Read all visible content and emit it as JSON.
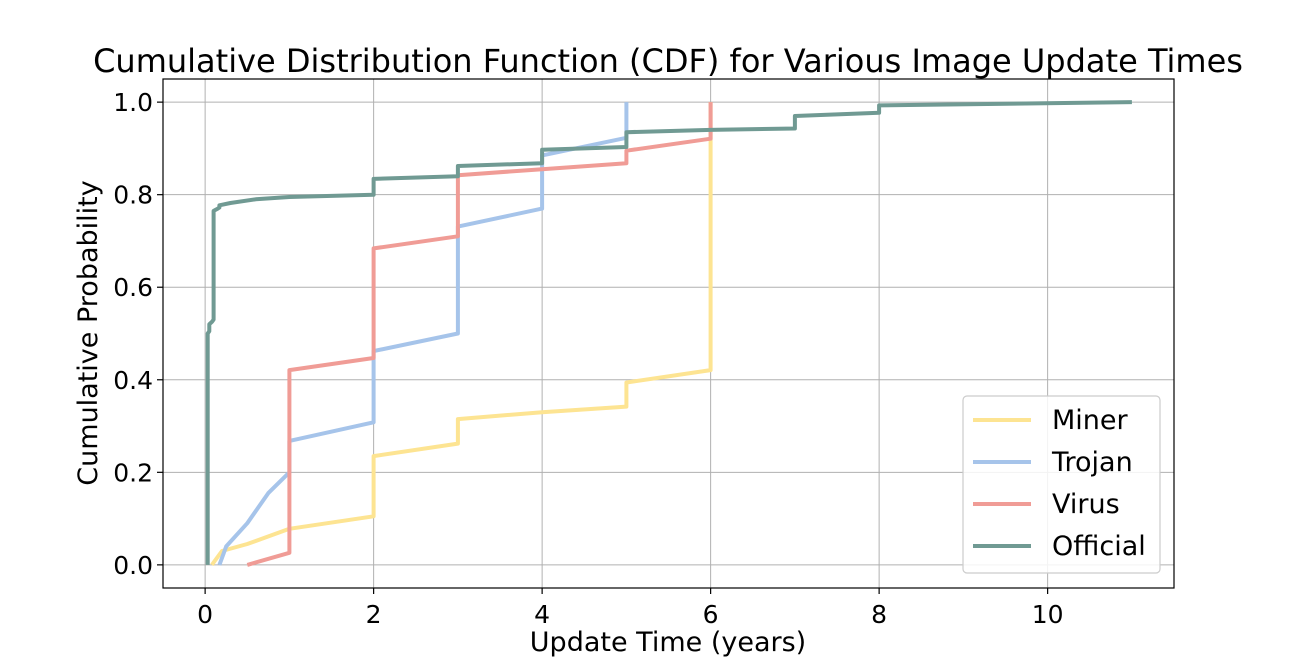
{
  "chart_data": {
    "type": "line",
    "title": "Cumulative Distribution Function (CDF) for Various Image Update Times",
    "xlabel": "Update Time (years)",
    "ylabel": "Cumulative Probability",
    "xlim": [
      -0.5,
      11.5
    ],
    "ylim": [
      -0.05,
      1.05
    ],
    "xticks": [
      0,
      2,
      4,
      6,
      8,
      10
    ],
    "yticks": [
      0.0,
      0.2,
      0.4,
      0.6,
      0.8,
      1.0
    ],
    "xtick_labels": [
      "0",
      "2",
      "4",
      "6",
      "8",
      "10"
    ],
    "ytick_labels": [
      "0.0",
      "0.2",
      "0.4",
      "0.6",
      "0.8",
      "1.0"
    ],
    "grid": true,
    "legend_position": "lower-right",
    "series": [
      {
        "name": "Miner",
        "color": "#fde492",
        "points": [
          [
            0.08,
            0.0
          ],
          [
            0.1,
            0.005
          ],
          [
            0.2,
            0.03
          ],
          [
            0.5,
            0.045
          ],
          [
            1.0,
            0.078
          ],
          [
            2.0,
            0.105
          ],
          [
            2.0,
            0.235
          ],
          [
            3.0,
            0.262
          ],
          [
            3.0,
            0.315
          ],
          [
            4.0,
            0.33
          ],
          [
            5.0,
            0.342
          ],
          [
            5.0,
            0.394
          ],
          [
            6.0,
            0.421
          ],
          [
            6.0,
            1.0
          ]
        ]
      },
      {
        "name": "Trojan",
        "color": "#a6c4ea",
        "points": [
          [
            0.17,
            0.0
          ],
          [
            0.25,
            0.04
          ],
          [
            0.5,
            0.09
          ],
          [
            0.75,
            0.155
          ],
          [
            1.0,
            0.2
          ],
          [
            1.0,
            0.268
          ],
          [
            2.0,
            0.308
          ],
          [
            2.0,
            0.462
          ],
          [
            3.0,
            0.5
          ],
          [
            3.0,
            0.731
          ],
          [
            4.0,
            0.77
          ],
          [
            4.0,
            0.885
          ],
          [
            5.0,
            0.923
          ],
          [
            5.0,
            1.0
          ]
        ]
      },
      {
        "name": "Virus",
        "color": "#f09c96",
        "points": [
          [
            0.5,
            0.0
          ],
          [
            1.0,
            0.026
          ],
          [
            1.0,
            0.421
          ],
          [
            2.0,
            0.447
          ],
          [
            2.0,
            0.684
          ],
          [
            3.0,
            0.71
          ],
          [
            3.0,
            0.842
          ],
          [
            4.0,
            0.855
          ],
          [
            5.0,
            0.868
          ],
          [
            5.0,
            0.895
          ],
          [
            6.0,
            0.921
          ],
          [
            6.0,
            1.0
          ]
        ]
      },
      {
        "name": "Official",
        "color": "#709a93",
        "points": [
          [
            0.03,
            0.0
          ],
          [
            0.03,
            0.5
          ],
          [
            0.05,
            0.505
          ],
          [
            0.05,
            0.52
          ],
          [
            0.08,
            0.525
          ],
          [
            0.1,
            0.53
          ],
          [
            0.1,
            0.765
          ],
          [
            0.15,
            0.77
          ],
          [
            0.17,
            0.772
          ],
          [
            0.17,
            0.777
          ],
          [
            0.3,
            0.782
          ],
          [
            0.6,
            0.79
          ],
          [
            1.0,
            0.795
          ],
          [
            2.0,
            0.8
          ],
          [
            2.0,
            0.834
          ],
          [
            3.0,
            0.84
          ],
          [
            3.0,
            0.862
          ],
          [
            4.0,
            0.868
          ],
          [
            4.0,
            0.897
          ],
          [
            5.0,
            0.903
          ],
          [
            5.0,
            0.935
          ],
          [
            6.0,
            0.94
          ],
          [
            7.0,
            0.943
          ],
          [
            7.0,
            0.97
          ],
          [
            8.0,
            0.977
          ],
          [
            8.0,
            0.993
          ],
          [
            11.0,
            1.0
          ]
        ]
      }
    ]
  }
}
